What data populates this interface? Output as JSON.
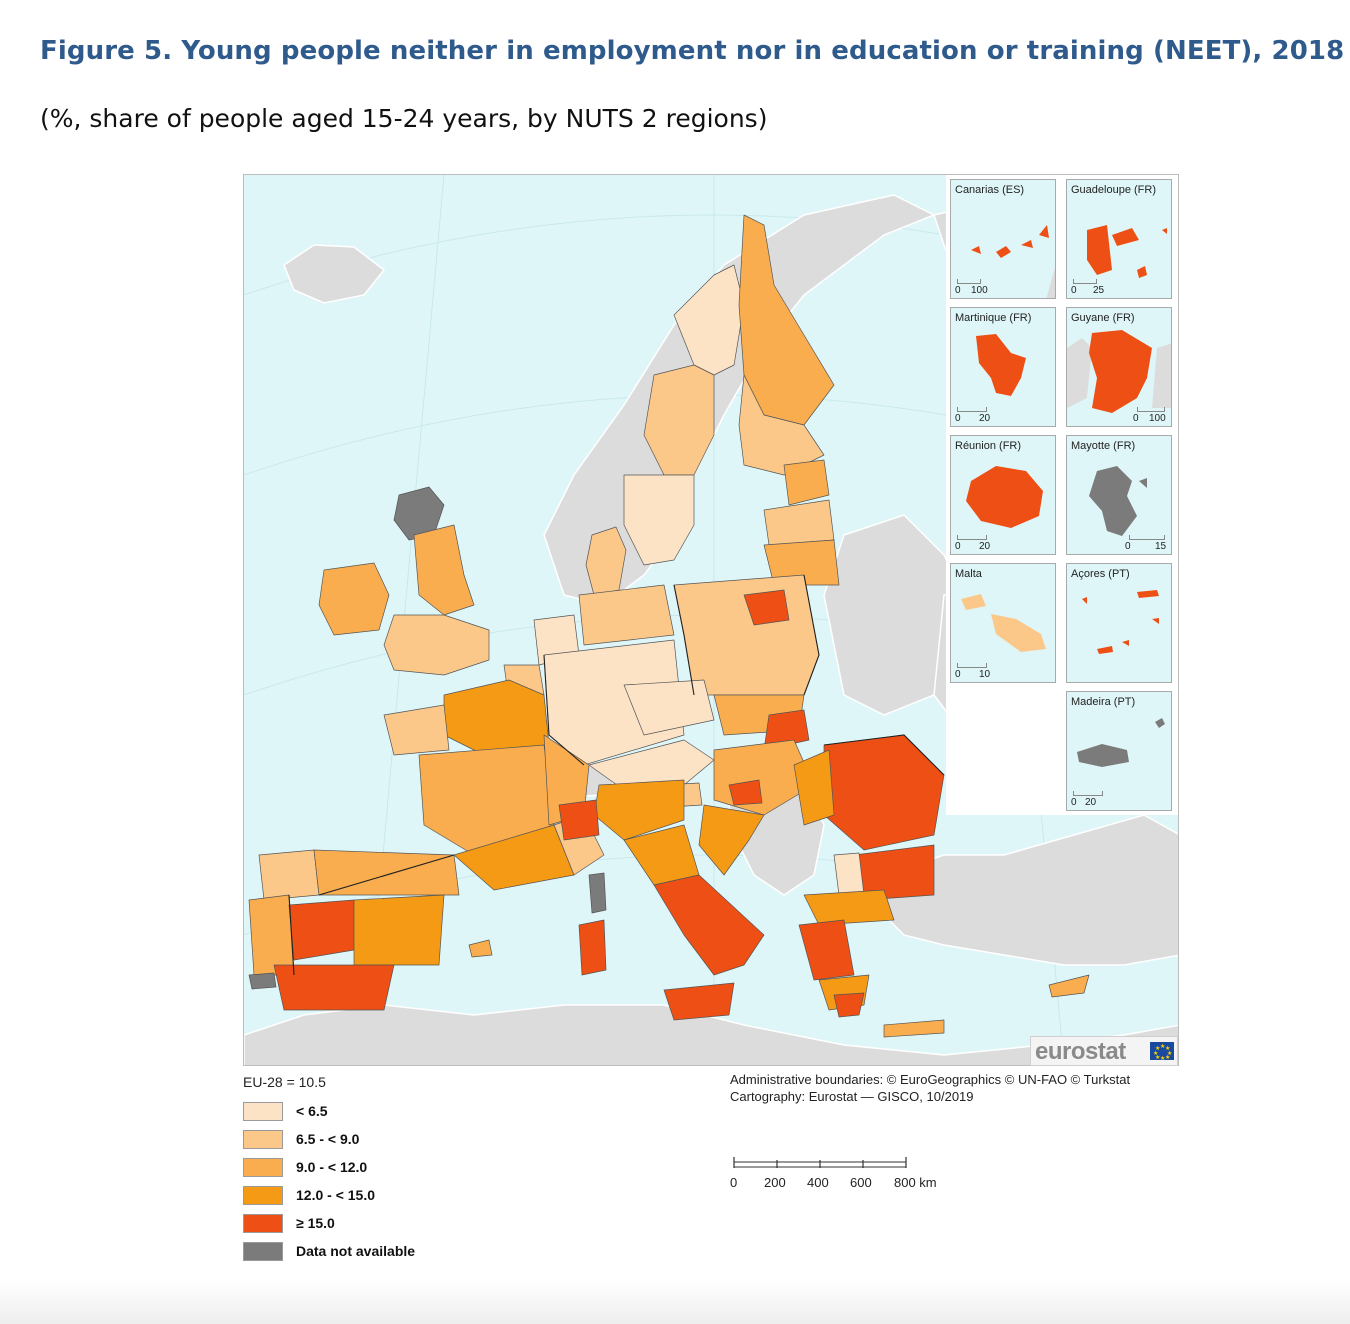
{
  "figure": {
    "title": "Figure 5. Young people neither in employment nor in education or training (NEET), 2018",
    "subtitle": "(%, share of people aged 15-24 years, by NUTS 2 regions)"
  },
  "colors": {
    "sea": "#dff6f8",
    "land_outside": "#dcdcdc",
    "lt_6_5": "#fde3c6",
    "6_5_to_9": "#fbc88a",
    "9_to_12": "#f9ad4e",
    "12_to_15": "#f59a14",
    "ge_15": "#ee4f14",
    "na": "#7b7b7b"
  },
  "insets": [
    {
      "name": "Canarias (ES)",
      "scale_0": "0",
      "scale_max": "100"
    },
    {
      "name": "Guadeloupe (FR)",
      "scale_0": "0",
      "scale_max": "25"
    },
    {
      "name": "Martinique (FR)",
      "scale_0": "0",
      "scale_max": "20"
    },
    {
      "name": "Guyane (FR)",
      "scale_0": "0",
      "scale_max": "100"
    },
    {
      "name": "Réunion (FR)",
      "scale_0": "0",
      "scale_max": "20"
    },
    {
      "name": "Mayotte (FR)",
      "scale_0": "0",
      "scale_max": "15"
    },
    {
      "name": "Malta",
      "scale_0": "0",
      "scale_max": "10"
    },
    {
      "name": "Açores (PT)",
      "scale_0": "",
      "scale_max": ""
    },
    {
      "name": "Madeira (PT)",
      "scale_0": "0",
      "scale_max": "20"
    }
  ],
  "logo": "eurostat",
  "eu_average": "EU-28 = 10.5",
  "legend": [
    {
      "label": "< 6.5",
      "color": "#fde3c6"
    },
    {
      "label": "6.5 - < 9.0",
      "color": "#fbc88a"
    },
    {
      "label": "9.0 - < 12.0",
      "color": "#f9ad4e"
    },
    {
      "label": "12.0 - < 15.0",
      "color": "#f59a14"
    },
    {
      "label": "≥ 15.0",
      "color": "#ee4f14"
    },
    {
      "label": "Data not available",
      "color": "#7b7b7b"
    }
  ],
  "credits": {
    "boundaries": "Administrative boundaries: © EuroGeographics © UN-FAO © Turkstat",
    "cartography": "Cartography: Eurostat — GISCO, 10/2019"
  },
  "scale": {
    "labels": [
      "0",
      "200",
      "400",
      "600",
      "800 km"
    ]
  }
}
